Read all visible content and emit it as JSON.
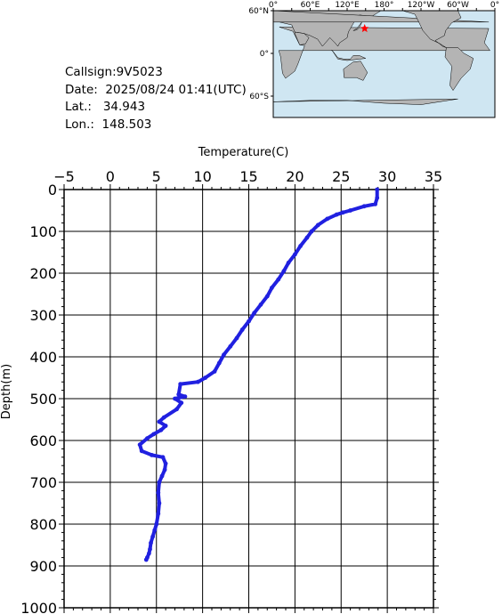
{
  "info": {
    "callsign_label": "Callsign:",
    "callsign": "9V5023",
    "date_label": "Date:",
    "date": "2025/08/24 01:41(UTC)",
    "lat_label": "Lat.:",
    "lat": "34.943",
    "lon_label": "Lon.:",
    "lon": "148.503"
  },
  "map": {
    "top_labels": [
      "0°",
      "60°E",
      "120°E",
      "180°",
      "120°W",
      "60°W",
      "0°"
    ],
    "lat_labels": [
      "60°N",
      "0°",
      "60°S"
    ],
    "ocean_color": "#cfe6f2",
    "land_color": "#b4b4b4",
    "marker_color": "#ff0000",
    "marker": {
      "lon": 148.503,
      "lat": 34.943
    }
  },
  "chart_data": {
    "type": "line",
    "xlabel": "Temperature(C)",
    "ylabel": "Depth(m)",
    "xlim": [
      -5,
      35
    ],
    "ylim": [
      1000,
      0
    ],
    "x_ticks": [
      -5,
      0,
      5,
      10,
      15,
      20,
      25,
      30,
      35
    ],
    "y_ticks": [
      0,
      100,
      200,
      300,
      400,
      500,
      600,
      700,
      800,
      900,
      1000
    ],
    "grid": true,
    "series_color": "#2020e0",
    "series": [
      {
        "x": [
          28.9,
          28.9,
          28.7,
          27.5,
          26.0,
          25.2,
          24.5,
          23.5,
          22.5,
          21.8,
          21.3,
          20.6,
          20.0,
          19.3,
          18.8,
          18.2,
          17.5,
          17.0,
          16.3,
          15.6,
          15.0,
          14.3,
          13.7,
          13.0,
          12.3,
          11.8,
          11.3,
          10.3,
          9.5,
          7.6,
          7.4,
          8.1,
          7.0,
          7.7,
          7.2,
          5.8,
          5.3,
          6.0,
          5.5,
          4.7,
          4.0,
          3.2,
          3.4,
          4.5,
          5.7,
          6.0,
          5.9,
          5.6,
          5.3,
          5.2,
          5.3,
          5.2,
          5.0,
          4.8,
          4.6,
          4.4,
          4.3,
          4.2,
          4.0,
          3.9
        ],
        "y": [
          0,
          20,
          35,
          40,
          50,
          55,
          60,
          70,
          85,
          100,
          115,
          135,
          155,
          175,
          195,
          215,
          235,
          255,
          275,
          295,
          315,
          335,
          355,
          375,
          395,
          415,
          435,
          450,
          460,
          465,
          490,
          495,
          500,
          510,
          525,
          545,
          555,
          565,
          575,
          585,
          595,
          610,
          625,
          635,
          640,
          655,
          670,
          685,
          700,
          725,
          750,
          775,
          800,
          815,
          830,
          845,
          860,
          870,
          880,
          885
        ]
      }
    ]
  }
}
